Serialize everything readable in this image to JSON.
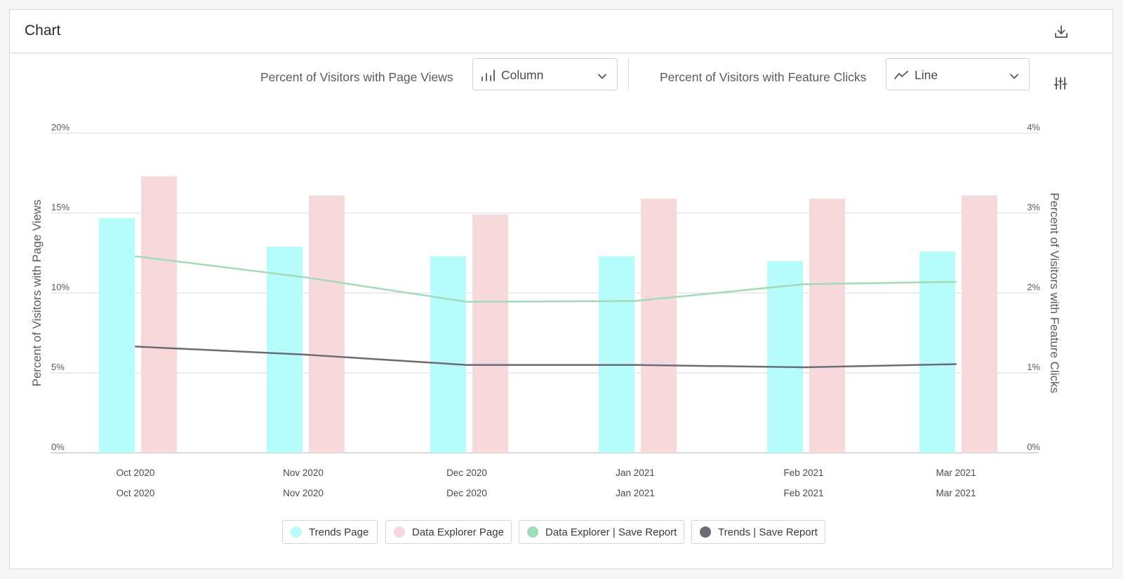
{
  "card": {
    "title": "Chart"
  },
  "icons": {
    "download": "download-icon",
    "settings": "sliders-icon",
    "column": "column-chart-icon",
    "line": "line-chart-icon",
    "chevron": "chevron-down-icon"
  },
  "controls": {
    "left_label": "Percent of Visitors with Page Views",
    "left_select": "Column",
    "right_label": "Percent of Visitors with Feature Clicks",
    "right_select": "Line"
  },
  "colors": {
    "trends_page": "#b6fcfb",
    "data_explorer_page": "#f7d8db",
    "data_explorer_save": "#a2dbb7",
    "trends_save": "#6b6c74",
    "grid": "#d8dbe8"
  },
  "chart_data": {
    "type": "bar+line",
    "categories": [
      "Oct 2020",
      "Nov 2020",
      "Dec 2020",
      "Jan 2021",
      "Feb 2021",
      "Mar 2021"
    ],
    "secondary_categories": [
      "Oct 2020",
      "Nov 2020",
      "Dec 2020",
      "Jan 2021",
      "Feb 2021",
      "Mar 2021"
    ],
    "left_axis": {
      "title": "Percent of Visitors with Page Views",
      "ticks": [
        "0%",
        "5%",
        "10%",
        "15%",
        "20%"
      ],
      "range": [
        0,
        20
      ]
    },
    "right_axis": {
      "title": "Percent of Visitors with Feature Clicks",
      "ticks": [
        "0%",
        "1%",
        "2%",
        "3%",
        "4%"
      ],
      "range": [
        0,
        4
      ]
    },
    "bar_series": [
      {
        "name": "Trends Page",
        "values": [
          14.7,
          12.9,
          12.3,
          12.3,
          12.0,
          12.6
        ]
      },
      {
        "name": "Data Explorer Page",
        "values": [
          17.3,
          16.1,
          14.9,
          15.9,
          15.9,
          16.1
        ]
      }
    ],
    "line_series": [
      {
        "name": "Data Explorer | Save Report",
        "values": [
          2.46,
          2.2,
          1.89,
          1.9,
          2.11,
          2.14
        ]
      },
      {
        "name": "Trends | Save Report",
        "values": [
          1.33,
          1.23,
          1.1,
          1.1,
          1.07,
          1.11
        ]
      }
    ],
    "grid": true,
    "legend_position": "bottom"
  }
}
